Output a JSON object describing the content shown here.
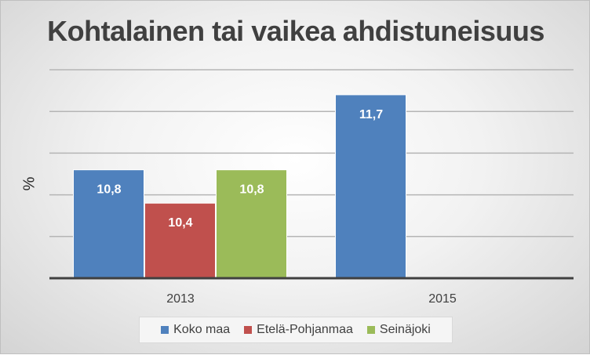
{
  "chart_data": {
    "type": "bar",
    "title": "Kohtalainen tai vaikea ahdistuneisuus",
    "ylabel": "%",
    "xlabel": "",
    "categories": [
      "2013",
      "2015"
    ],
    "series": [
      {
        "name": "Koko maa",
        "color": "#4f81bd",
        "values": [
          10.8,
          11.7
        ],
        "labels": [
          "10,8",
          "11,7"
        ]
      },
      {
        "name": "Etelä-Pohjanmaa",
        "color": "#c0504d",
        "values": [
          10.4,
          null
        ],
        "labels": [
          "10,4",
          ""
        ]
      },
      {
        "name": "Seinäjoki",
        "color": "#9bbb59",
        "values": [
          10.8,
          null
        ],
        "labels": [
          "10,8",
          ""
        ]
      }
    ],
    "ylim": [
      9.5,
      12
    ],
    "grid": true,
    "legend_position": "bottom"
  }
}
